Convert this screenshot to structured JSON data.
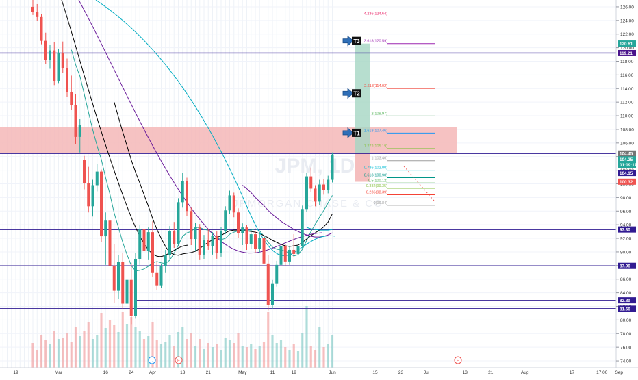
{
  "chart_data": {
    "type": "candlestick",
    "ticker_watermark": "JPM, 1D",
    "company_watermark": "JPMORGAN CHASE & CO",
    "y_axis": {
      "range": [
        73,
        127
      ],
      "ticks": [
        "74.00",
        "76.00",
        "78.00",
        "80.00",
        "82.00",
        "84.00",
        "86.00",
        "88.00",
        "90.00",
        "92.00",
        "94.00",
        "96.00",
        "98.00",
        "100.00",
        "102.00",
        "104.00",
        "106.00",
        "108.00",
        "110.00",
        "112.00",
        "114.00",
        "116.00",
        "118.00",
        "120.00",
        "122.00",
        "124.00",
        "126.00"
      ]
    },
    "x_axis": {
      "ticks": [
        {
          "label": "19",
          "bar": -4
        },
        {
          "label": "Mar",
          "bar": 6
        },
        {
          "label": "16",
          "bar": 17
        },
        {
          "label": "24",
          "bar": 23
        },
        {
          "label": "Apr",
          "bar": 28
        },
        {
          "label": "13",
          "bar": 35
        },
        {
          "label": "21",
          "bar": 41
        },
        {
          "label": "May",
          "bar": 49
        },
        {
          "label": "11",
          "bar": 56
        },
        {
          "label": "19",
          "bar": 61
        },
        {
          "label": "Jun",
          "bar": 70
        },
        {
          "label": "15",
          "bar": 80
        },
        {
          "label": "23",
          "bar": 86
        },
        {
          "label": "Jul",
          "bar": 92
        },
        {
          "label": "13",
          "bar": 101
        },
        {
          "label": "21",
          "bar": 107
        },
        {
          "label": "Aug",
          "bar": 115
        },
        {
          "label": "17",
          "bar": 126
        },
        {
          "label": "17:00",
          "bar": 133
        },
        {
          "label": "Sep",
          "bar": 137
        }
      ]
    },
    "candles": [
      {
        "o": 126.0,
        "h": 127.0,
        "l": 124.8,
        "c": 125.2
      },
      {
        "o": 125.2,
        "h": 126.4,
        "l": 123.9,
        "c": 124.5
      },
      {
        "o": 124.5,
        "h": 124.9,
        "l": 120.5,
        "c": 121.0
      },
      {
        "o": 121.0,
        "h": 122.2,
        "l": 117.6,
        "c": 118.2
      },
      {
        "o": 118.2,
        "h": 120.4,
        "l": 116.9,
        "c": 119.6
      },
      {
        "o": 119.6,
        "h": 120.8,
        "l": 114.5,
        "c": 115.1
      },
      {
        "o": 115.1,
        "h": 119.8,
        "l": 114.8,
        "c": 119.2
      },
      {
        "o": 119.2,
        "h": 120.9,
        "l": 116.3,
        "c": 117.0
      },
      {
        "o": 117.0,
        "h": 118.4,
        "l": 112.8,
        "c": 113.5
      },
      {
        "o": 113.5,
        "h": 115.9,
        "l": 110.9,
        "c": 111.6
      },
      {
        "o": 111.6,
        "h": 113.2,
        "l": 105.8,
        "c": 106.9
      },
      {
        "o": 106.9,
        "h": 109.5,
        "l": 104.6,
        "c": 108.6
      },
      {
        "o": 103.5,
        "h": 104.1,
        "l": 99.2,
        "c": 100.1
      },
      {
        "o": 100.1,
        "h": 102.5,
        "l": 95.8,
        "c": 96.7
      },
      {
        "o": 96.7,
        "h": 100.6,
        "l": 95.2,
        "c": 99.8
      },
      {
        "o": 99.8,
        "h": 102.9,
        "l": 98.9,
        "c": 101.8
      },
      {
        "o": 101.8,
        "h": 102.1,
        "l": 91.5,
        "c": 92.3
      },
      {
        "o": 92.3,
        "h": 95.8,
        "l": 88.1,
        "c": 94.6
      },
      {
        "o": 94.6,
        "h": 95.2,
        "l": 87.1,
        "c": 88.0
      },
      {
        "o": 88.0,
        "h": 91.2,
        "l": 82.5,
        "c": 84.3
      },
      {
        "o": 84.3,
        "h": 89.5,
        "l": 83.1,
        "c": 88.5
      },
      {
        "o": 88.5,
        "h": 89.9,
        "l": 81.6,
        "c": 82.4
      },
      {
        "o": 82.4,
        "h": 87.2,
        "l": 80.2,
        "c": 85.9
      },
      {
        "o": 85.9,
        "h": 88.4,
        "l": 79.4,
        "c": 80.6
      },
      {
        "o": 80.6,
        "h": 89.8,
        "l": 80.2,
        "c": 88.9
      },
      {
        "o": 88.9,
        "h": 93.9,
        "l": 88.1,
        "c": 93.3
      },
      {
        "o": 93.3,
        "h": 94.2,
        "l": 89.6,
        "c": 90.1
      },
      {
        "o": 90.1,
        "h": 93.6,
        "l": 88.8,
        "c": 92.9
      },
      {
        "o": 92.9,
        "h": 94.5,
        "l": 86.3,
        "c": 87.0
      },
      {
        "o": 87.0,
        "h": 88.6,
        "l": 84.4,
        "c": 85.1
      },
      {
        "o": 85.1,
        "h": 88.2,
        "l": 84.7,
        "c": 87.9
      },
      {
        "o": 87.9,
        "h": 90.3,
        "l": 87.0,
        "c": 89.5
      },
      {
        "o": 89.5,
        "h": 93.8,
        "l": 89.0,
        "c": 93.1
      },
      {
        "o": 93.1,
        "h": 94.4,
        "l": 90.6,
        "c": 91.2
      },
      {
        "o": 91.2,
        "h": 97.9,
        "l": 90.8,
        "c": 97.3
      },
      {
        "o": 97.3,
        "h": 101.6,
        "l": 96.5,
        "c": 100.4
      },
      {
        "o": 100.4,
        "h": 100.9,
        "l": 95.3,
        "c": 96.0
      },
      {
        "o": 96.0,
        "h": 96.5,
        "l": 91.0,
        "c": 91.9
      },
      {
        "o": 91.9,
        "h": 94.3,
        "l": 90.2,
        "c": 93.6
      },
      {
        "o": 93.6,
        "h": 94.1,
        "l": 88.8,
        "c": 89.6
      },
      {
        "o": 89.6,
        "h": 92.5,
        "l": 88.9,
        "c": 91.8
      },
      {
        "o": 91.8,
        "h": 93.3,
        "l": 90.3,
        "c": 90.9
      },
      {
        "o": 90.9,
        "h": 92.9,
        "l": 89.6,
        "c": 92.4
      },
      {
        "o": 92.4,
        "h": 93.0,
        "l": 89.0,
        "c": 89.8
      },
      {
        "o": 89.8,
        "h": 93.7,
        "l": 89.3,
        "c": 93.1
      },
      {
        "o": 93.1,
        "h": 96.7,
        "l": 92.6,
        "c": 96.1
      },
      {
        "o": 96.1,
        "h": 99.0,
        "l": 95.6,
        "c": 98.3
      },
      {
        "o": 98.3,
        "h": 98.7,
        "l": 95.1,
        "c": 95.8
      },
      {
        "o": 95.8,
        "h": 96.4,
        "l": 92.1,
        "c": 92.8
      },
      {
        "o": 92.8,
        "h": 94.2,
        "l": 91.0,
        "c": 93.6
      },
      {
        "o": 93.6,
        "h": 94.0,
        "l": 90.3,
        "c": 91.1
      },
      {
        "o": 91.1,
        "h": 93.2,
        "l": 90.5,
        "c": 92.6
      },
      {
        "o": 92.6,
        "h": 93.1,
        "l": 89.8,
        "c": 90.4
      },
      {
        "o": 90.4,
        "h": 92.9,
        "l": 89.9,
        "c": 92.1
      },
      {
        "o": 92.1,
        "h": 92.6,
        "l": 87.7,
        "c": 88.3
      },
      {
        "o": 88.3,
        "h": 89.5,
        "l": 81.4,
        "c": 82.2
      },
      {
        "o": 82.2,
        "h": 85.9,
        "l": 81.6,
        "c": 85.3
      },
      {
        "o": 85.3,
        "h": 88.7,
        "l": 84.9,
        "c": 88.1
      },
      {
        "o": 88.1,
        "h": 91.5,
        "l": 87.6,
        "c": 90.8
      },
      {
        "o": 90.8,
        "h": 91.2,
        "l": 88.0,
        "c": 88.6
      },
      {
        "o": 88.6,
        "h": 90.9,
        "l": 88.1,
        "c": 90.3
      },
      {
        "o": 90.3,
        "h": 92.6,
        "l": 89.2,
        "c": 89.7
      },
      {
        "o": 89.7,
        "h": 91.4,
        "l": 89.1,
        "c": 90.9
      },
      {
        "o": 90.9,
        "h": 96.8,
        "l": 90.5,
        "c": 96.3
      },
      {
        "o": 96.3,
        "h": 101.6,
        "l": 95.9,
        "c": 101.1
      },
      {
        "o": 101.1,
        "h": 102.4,
        "l": 98.8,
        "c": 99.3
      },
      {
        "o": 99.3,
        "h": 99.8,
        "l": 96.7,
        "c": 97.4
      },
      {
        "o": 97.4,
        "h": 100.6,
        "l": 96.9,
        "c": 99.9
      },
      {
        "o": 99.9,
        "h": 100.7,
        "l": 98.4,
        "c": 99.1
      },
      {
        "o": 99.1,
        "h": 101.2,
        "l": 98.6,
        "c": 100.6
      },
      {
        "o": 100.6,
        "h": 104.6,
        "l": 100.2,
        "c": 104.3
      }
    ],
    "candle_colors": {
      "up": "#26a69a",
      "down": "#ef5350"
    },
    "volumes": [
      18,
      13,
      24,
      20,
      17,
      27,
      21,
      22,
      25,
      19,
      30,
      23,
      27,
      33,
      21,
      24,
      40,
      29,
      35,
      31,
      26,
      41,
      32,
      37,
      30,
      27,
      21,
      23,
      33,
      20,
      17,
      19,
      24,
      16,
      26,
      30,
      21,
      25,
      16,
      21,
      14,
      18,
      15,
      17,
      13,
      22,
      20,
      18,
      25,
      16,
      15,
      17,
      14,
      16,
      19,
      41,
      24,
      18,
      20,
      15,
      13,
      17,
      12,
      25,
      45,
      16,
      13,
      30,
      15,
      17,
      24
    ],
    "moving_averages": [
      {
        "name": "MA fast",
        "color": "#26a69a",
        "values": [
          null,
          null,
          null,
          null,
          null,
          null,
          null,
          null,
          null,
          119.7,
          117.5,
          115.8,
          113.2,
          110.5,
          107.9,
          105.6,
          103.6,
          100.9,
          98.5,
          95.7,
          93.6,
          91.4,
          89.6,
          88.0,
          87.2,
          87.3,
          87.5,
          87.9,
          88.4,
          88.6,
          88.4,
          88.3,
          88.8,
          89.8,
          91.0,
          92.3,
          92.8,
          93.0,
          93.6,
          93.6,
          93.3,
          93.2,
          92.7,
          92.1,
          91.8,
          92.0,
          92.6,
          92.9,
          93.1,
          93.2,
          93.2,
          93.2,
          93.4,
          93.1,
          92.3,
          91.4,
          90.7,
          90.4,
          90.3,
          90.1,
          89.8,
          89.4,
          89.6,
          90.4,
          91.7,
          93.0,
          94.1,
          95.1,
          96.1,
          97.2,
          98.3
        ]
      },
      {
        "name": "MA 20",
        "color": "#000000",
        "values": [
          null,
          null,
          null,
          null,
          null,
          null,
          null,
          null,
          null,
          null,
          null,
          null,
          null,
          null,
          null,
          null,
          null,
          null,
          null,
          112.0,
          109.8,
          107.6,
          105.6,
          103.5,
          101.7,
          100.1,
          98.4,
          96.7,
          94.9,
          93.3,
          92.0,
          90.8,
          89.9,
          89.6,
          89.5,
          89.7,
          89.8,
          89.9,
          90.1,
          90.5,
          91.0,
          91.4,
          91.8,
          92.1,
          92.4,
          92.8,
          93.1,
          93.2,
          93.2,
          93.1,
          93.1,
          93.0,
          92.9,
          92.7,
          92.4,
          92.1,
          91.7,
          91.4,
          91.1,
          90.9,
          90.8,
          90.9,
          91.0,
          91.4,
          91.9,
          92.4,
          92.8,
          93.2,
          93.7,
          94.4,
          95.6
        ]
      },
      {
        "name": "MA 50",
        "color": "#6a1b9a",
        "values": [
          null,
          null,
          null,
          null,
          null,
          null,
          null,
          null,
          null,
          null,
          null,
          null,
          null,
          null,
          null,
          null,
          null,
          null,
          null,
          null,
          null,
          null,
          null,
          null,
          null,
          null,
          null,
          null,
          null,
          null,
          null,
          null,
          null,
          null,
          null,
          null,
          null,
          null,
          null,
          null,
          null,
          null,
          null,
          null,
          null,
          null,
          null,
          null,
          null,
          99.8,
          99.3,
          98.7,
          98.0,
          97.4,
          96.8,
          96.1,
          95.5,
          95.0,
          94.5,
          94.1,
          93.7,
          93.3,
          93.0,
          92.7,
          92.5,
          92.3,
          92.2,
          92.2,
          92.3,
          92.5,
          92.8
        ]
      },
      {
        "name": "MA 200",
        "color": "#00acc1",
        "values": [
          null,
          null,
          null,
          null,
          null,
          null,
          null,
          null,
          null,
          null,
          null,
          null,
          null,
          null,
          null,
          null,
          null,
          null,
          null,
          null,
          null,
          null,
          null,
          null,
          null,
          null,
          null,
          null,
          null,
          null,
          null,
          null,
          null,
          null,
          null,
          null,
          null,
          null,
          null,
          null,
          null,
          null,
          null,
          null,
          null,
          null,
          null,
          null,
          null,
          null,
          null,
          null,
          null,
          null,
          null,
          null,
          null,
          null,
          null,
          null,
          null,
          null,
          null,
          null,
          93.6,
          93.4,
          93.3,
          93.2,
          93.2,
          93.2,
          93.3
        ]
      }
    ],
    "horizontal_levels": [
      {
        "price": 119.21,
        "label": "119.21"
      },
      {
        "price": 93.3,
        "label": "93.30"
      },
      {
        "price": 87.96,
        "label": "87.96"
      },
      {
        "price": 82.89,
        "label": "82.89"
      },
      {
        "price": 81.66,
        "label": "81.66"
      }
    ],
    "price_tags": [
      {
        "price": 120.61,
        "text": "120.61",
        "bg": "#26a69a",
        "fg": "#ffffff"
      },
      {
        "price": 119.21,
        "text": "119.21",
        "bg": "#4a148c",
        "fg": "#ffffff"
      },
      {
        "price": 104.45,
        "text": "104.45",
        "bg": "#757575",
        "fg": "#ffffff"
      },
      {
        "price": 103.6,
        "text": "104.25",
        "bg": "#26a69a",
        "fg": "#ffffff"
      },
      {
        "price": 102.8,
        "text": "01:09:17",
        "bg": "#26a69a",
        "fg": "#ffffff"
      },
      {
        "price": 101.6,
        "text": "104.15",
        "bg": "#311b92",
        "fg": "#ffffff"
      },
      {
        "price": 100.32,
        "text": "100.32",
        "bg": "#ef5350",
        "fg": "#ffffff"
      },
      {
        "price": 93.3,
        "text": "93.30",
        "bg": "#311b92",
        "fg": "#ffffff"
      },
      {
        "price": 87.96,
        "text": "87.96",
        "bg": "#311b92",
        "fg": "#ffffff"
      },
      {
        "price": 82.89,
        "text": "82.89",
        "bg": "#311b92",
        "fg": "#ffffff"
      },
      {
        "price": 81.66,
        "text": "81.66",
        "bg": "#311b92",
        "fg": "#ffffff"
      }
    ],
    "resistance_zone": {
      "from": 104.45,
      "to": 108.3,
      "color": "#f4b7b7"
    },
    "fib_levels": [
      {
        "label": "4.236(124.64)",
        "price": 124.64,
        "color": "#e91e63"
      },
      {
        "label": "3.618(120.59)",
        "price": 120.59,
        "color": "#9c27b0"
      },
      {
        "label": "2.618(114.02)",
        "price": 114.02,
        "color": "#f44336"
      },
      {
        "label": "2(109.97)",
        "price": 109.97,
        "color": "#4caf50"
      },
      {
        "label": "1.618(107.46)",
        "price": 107.46,
        "color": "#2196f3"
      },
      {
        "label": "1.272(105.19)",
        "price": 105.19,
        "color": "#8bc34a"
      },
      {
        "label": "1(103.40)",
        "price": 103.4,
        "color": "#9e9e9e"
      },
      {
        "label": "0.786(102.00)",
        "price": 102.0,
        "color": "#00bcd4"
      },
      {
        "label": "0.618(100.90)",
        "price": 100.9,
        "color": "#009688"
      },
      {
        "label": "0.5(100.12)",
        "price": 100.12,
        "color": "#4caf50"
      },
      {
        "label": "0.382(99.35)",
        "price": 99.35,
        "color": "#8bc34a"
      },
      {
        "label": "0.236(98.39)",
        "price": 98.39,
        "color": "#f44336"
      },
      {
        "label": "0(96.84)",
        "price": 96.84,
        "color": "#9e9e9e"
      }
    ],
    "targets": [
      {
        "label": "T1",
        "price": 107.5
      },
      {
        "label": "T2",
        "price": 113.3
      },
      {
        "label": "T3",
        "price": 121.0
      }
    ],
    "position_box": {
      "target": 120.6,
      "entry": 104.45,
      "stop": 100.3
    }
  }
}
